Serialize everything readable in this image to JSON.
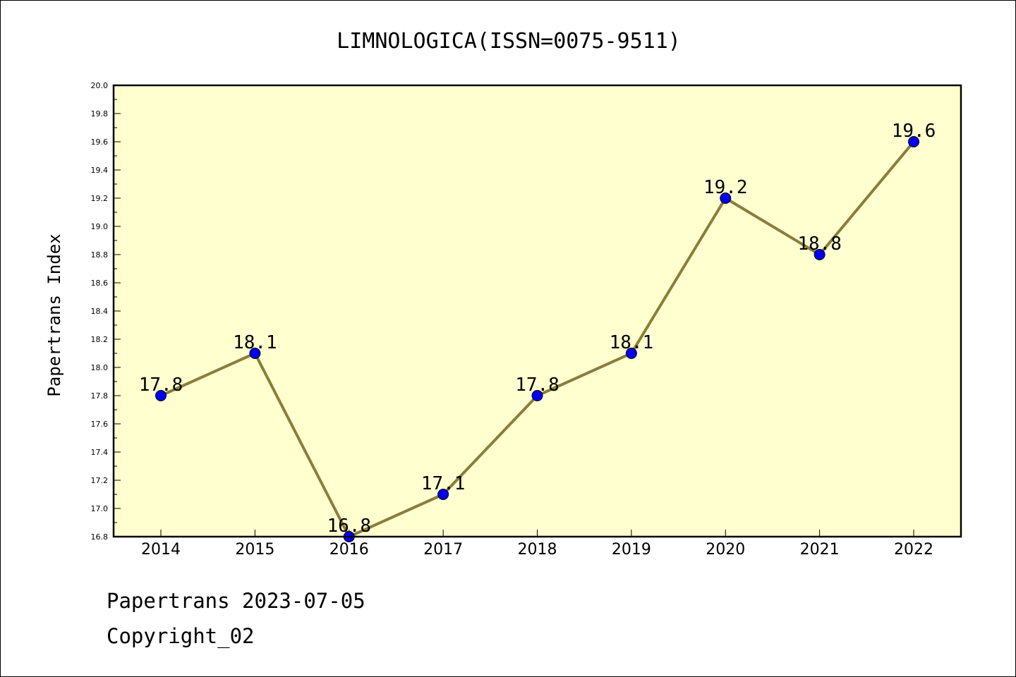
{
  "chart_data": {
    "type": "line",
    "title": "LIMNOLOGICA(ISSN=0075-9511)",
    "ylabel": "Papertrans Index",
    "xlabel": "",
    "categories": [
      "2014",
      "2015",
      "2016",
      "2017",
      "2018",
      "2019",
      "2020",
      "2021",
      "2022"
    ],
    "series": [
      {
        "values": [
          17.8,
          18.1,
          16.8,
          17.1,
          17.8,
          18.1,
          19.2,
          18.8,
          19.6
        ]
      }
    ],
    "data_labels": [
      "17.8",
      "18.1",
      "16.8",
      "17.1",
      "17.8",
      "18.1",
      "19.2",
      "18.8",
      "19.6"
    ],
    "ylim": [
      16.8,
      20.0
    ],
    "ytick_step": 0.2,
    "grid": false,
    "legend": "none",
    "colors": {
      "plot_background": "#ffffd0",
      "line": "#8b7d3a",
      "marker": "#0000ee"
    }
  },
  "footer": {
    "line1": "Papertrans 2023-07-05",
    "line2": "Copyright_02"
  }
}
